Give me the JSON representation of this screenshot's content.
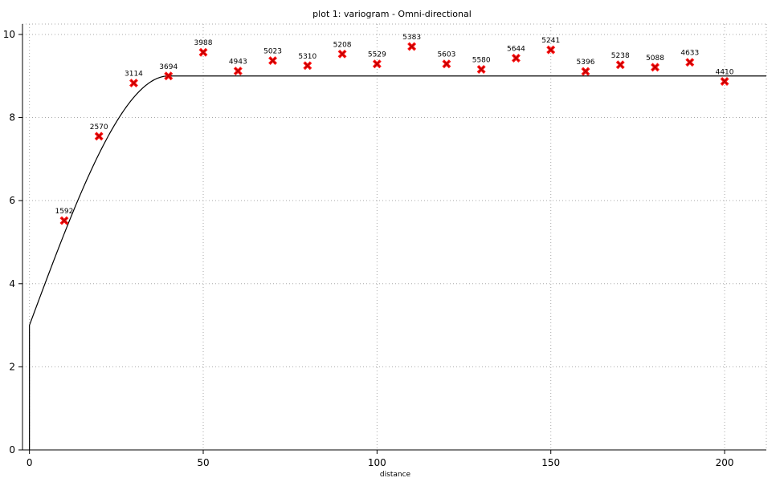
{
  "chart_data": {
    "type": "scatter",
    "title": "plot 1:  variogram - Omni-directional",
    "xlabel": "distance",
    "ylabel": "",
    "xlim": [
      -2,
      212
    ],
    "ylim": [
      0,
      10.25
    ],
    "x_ticks": [
      0,
      50,
      100,
      150,
      200
    ],
    "y_ticks": [
      0,
      2,
      4,
      6,
      8,
      10
    ],
    "grid": true,
    "series": [
      {
        "marker": "x",
        "color": "#ff0000",
        "points": [
          {
            "x": 10,
            "y": 5.52,
            "pairs": "1592"
          },
          {
            "x": 20,
            "y": 7.55,
            "pairs": "2570"
          },
          {
            "x": 30,
            "y": 8.83,
            "pairs": "3114"
          },
          {
            "x": 40,
            "y": 9.0,
            "pairs": "3694"
          },
          {
            "x": 50,
            "y": 9.57,
            "pairs": "3988"
          },
          {
            "x": 60,
            "y": 9.12,
            "pairs": "4943"
          },
          {
            "x": 70,
            "y": 9.37,
            "pairs": "5023"
          },
          {
            "x": 80,
            "y": 9.25,
            "pairs": "5310"
          },
          {
            "x": 90,
            "y": 9.53,
            "pairs": "5208"
          },
          {
            "x": 100,
            "y": 9.29,
            "pairs": "5529"
          },
          {
            "x": 110,
            "y": 9.71,
            "pairs": "5383"
          },
          {
            "x": 120,
            "y": 9.29,
            "pairs": "5603"
          },
          {
            "x": 130,
            "y": 9.16,
            "pairs": "5580"
          },
          {
            "x": 140,
            "y": 9.43,
            "pairs": "5644"
          },
          {
            "x": 150,
            "y": 9.63,
            "pairs": "5241"
          },
          {
            "x": 160,
            "y": 9.11,
            "pairs": "5396"
          },
          {
            "x": 170,
            "y": 9.27,
            "pairs": "5238"
          },
          {
            "x": 180,
            "y": 9.21,
            "pairs": "5088"
          },
          {
            "x": 190,
            "y": 9.33,
            "pairs": "4633"
          },
          {
            "x": 200,
            "y": 8.87,
            "pairs": "4410"
          }
        ]
      }
    ],
    "model": {
      "type": "spherical",
      "nugget": 3.0,
      "sill": 9.0,
      "range": 40,
      "color": "#000000"
    }
  }
}
